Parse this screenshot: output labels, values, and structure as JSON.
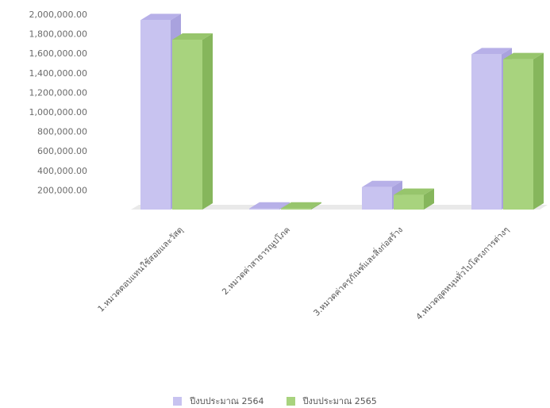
{
  "chart_data": {
    "type": "bar",
    "title": "",
    "xlabel": "",
    "ylabel": "",
    "ylim": [
      0,
      2000000
    ],
    "yticks": [
      200000,
      400000,
      600000,
      800000,
      1000000,
      1200000,
      1400000,
      1600000,
      1800000,
      2000000
    ],
    "tick_labels": [
      "200,000.00",
      "400,000.00",
      "600,000.00",
      "800,000.00",
      "1,000,000.00",
      "1,200,000.00",
      "1,400,000.00",
      "1,600,000.00",
      "1,800,000.00",
      "2,000,000.00"
    ],
    "categories": [
      "1.หมวดตอบแทนใช้สอยและวัสดุ",
      "2.หมวดค่าสาธารณูปโภค",
      "3.หมวดค่าครุภัณฑ์และสิ่งก่อสร้าง",
      "4.หมวดอุดหนุนทั่วไปโครงการต่างๆ"
    ],
    "series": [
      {
        "name": "ปีงบประมาณ 2564",
        "values": [
          1940000,
          10000,
          230000,
          1590000
        ]
      },
      {
        "name": "ปีงบประมาณ 2565",
        "values": [
          1740000,
          10000,
          150000,
          1540000
        ]
      }
    ],
    "legend_position": "bottom",
    "grid": false,
    "colors": {
      "series_2564": "#c8c3f0",
      "series_2564_side": "#a9a2de",
      "series_2564_top": "#b7b0e8",
      "series_2565": "#a8d37e",
      "series_2565_side": "#86b65c",
      "series_2565_top": "#97c56c",
      "floor": "#e9e9e9"
    }
  }
}
